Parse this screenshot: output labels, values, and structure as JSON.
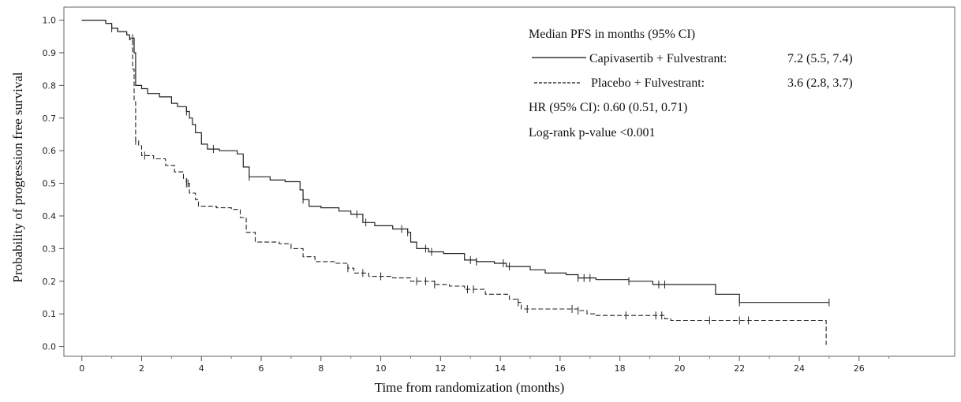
{
  "chart_data": {
    "type": "line",
    "xlabel": "Time from randomization (months)",
    "ylabel": "Probability of progression free survival",
    "xlim": [
      -0.6,
      29.2
    ],
    "ylim": [
      -0.03,
      1.04
    ],
    "xticks": [
      "0",
      "2",
      "4",
      "6",
      "8",
      "10",
      "12",
      "14",
      "16",
      "18",
      "20",
      "22",
      "24",
      "26"
    ],
    "yticks": [
      "0.0",
      "0.1",
      "0.2",
      "0.3",
      "0.4",
      "0.5",
      "0.6",
      "0.7",
      "0.8",
      "0.9",
      "1.0"
    ],
    "grid": false,
    "legend": {
      "title": "Median PFS in months (95% CI)",
      "entries": [
        {
          "line": "solid",
          "label": "Capivasertib + Fulvestrant:",
          "value": "7.2 (5.5, 7.4)"
        },
        {
          "line": "dashed",
          "label": "Placebo + Fulvestrant:",
          "value": "3.6 (2.8, 3.7)"
        }
      ],
      "notes": [
        "HR (95% CI): 0.60 (0.51, 0.71)",
        "Log-rank p-value <0.001"
      ]
    },
    "series": [
      {
        "line": "solid",
        "points": [
          [
            0,
            1.0
          ],
          [
            0.5,
            1.0
          ],
          [
            0.8,
            0.99
          ],
          [
            1.0,
            0.975
          ],
          [
            1.2,
            0.965
          ],
          [
            1.5,
            0.955
          ],
          [
            1.6,
            0.945
          ],
          [
            1.75,
            0.9
          ],
          [
            1.8,
            0.8
          ],
          [
            2.0,
            0.79
          ],
          [
            2.2,
            0.775
          ],
          [
            2.6,
            0.765
          ],
          [
            3.0,
            0.745
          ],
          [
            3.2,
            0.735
          ],
          [
            3.5,
            0.72
          ],
          [
            3.6,
            0.7
          ],
          [
            3.7,
            0.68
          ],
          [
            3.8,
            0.655
          ],
          [
            4.0,
            0.62
          ],
          [
            4.2,
            0.605
          ],
          [
            4.6,
            0.6
          ],
          [
            5.2,
            0.59
          ],
          [
            5.4,
            0.55
          ],
          [
            5.6,
            0.52
          ],
          [
            6.0,
            0.52
          ],
          [
            6.3,
            0.51
          ],
          [
            6.8,
            0.505
          ],
          [
            7.3,
            0.48
          ],
          [
            7.4,
            0.45
          ],
          [
            7.6,
            0.43
          ],
          [
            8.0,
            0.425
          ],
          [
            8.6,
            0.415
          ],
          [
            9.0,
            0.405
          ],
          [
            9.4,
            0.38
          ],
          [
            9.8,
            0.37
          ],
          [
            10.4,
            0.36
          ],
          [
            10.9,
            0.35
          ],
          [
            11.0,
            0.32
          ],
          [
            11.2,
            0.3
          ],
          [
            11.6,
            0.29
          ],
          [
            12.1,
            0.285
          ],
          [
            12.8,
            0.265
          ],
          [
            13.2,
            0.26
          ],
          [
            13.8,
            0.255
          ],
          [
            14.2,
            0.245
          ],
          [
            15.0,
            0.235
          ],
          [
            15.5,
            0.225
          ],
          [
            16.2,
            0.22
          ],
          [
            16.6,
            0.21
          ],
          [
            17.2,
            0.205
          ],
          [
            18.3,
            0.2
          ],
          [
            19.1,
            0.19
          ],
          [
            20.0,
            0.19
          ],
          [
            21.2,
            0.16
          ],
          [
            21.9,
            0.16
          ],
          [
            22.0,
            0.135
          ],
          [
            24.0,
            0.135
          ],
          [
            25.0,
            0.135
          ]
        ],
        "censor": [
          1.0,
          1.7,
          3.5,
          4.4,
          5.6,
          7.4,
          9.2,
          9.5,
          10.7,
          10.9,
          11.5,
          11.7,
          13.0,
          13.2,
          14.1,
          14.3,
          16.6,
          16.8,
          17.0,
          18.3,
          19.3,
          19.5,
          22.0,
          25.0
        ]
      },
      {
        "line": "dashed",
        "points": [
          [
            0,
            1.0
          ],
          [
            0.5,
            1.0
          ],
          [
            0.8,
            0.99
          ],
          [
            1.0,
            0.975
          ],
          [
            1.2,
            0.965
          ],
          [
            1.5,
            0.955
          ],
          [
            1.6,
            0.94
          ],
          [
            1.7,
            0.85
          ],
          [
            1.75,
            0.75
          ],
          [
            1.8,
            0.63
          ],
          [
            1.9,
            0.615
          ],
          [
            2.0,
            0.585
          ],
          [
            2.4,
            0.575
          ],
          [
            2.8,
            0.555
          ],
          [
            3.1,
            0.535
          ],
          [
            3.4,
            0.515
          ],
          [
            3.5,
            0.5
          ],
          [
            3.6,
            0.47
          ],
          [
            3.8,
            0.45
          ],
          [
            3.9,
            0.43
          ],
          [
            4.5,
            0.425
          ],
          [
            5.0,
            0.42
          ],
          [
            5.3,
            0.395
          ],
          [
            5.5,
            0.35
          ],
          [
            5.8,
            0.32
          ],
          [
            6.6,
            0.315
          ],
          [
            7.0,
            0.3
          ],
          [
            7.4,
            0.275
          ],
          [
            7.8,
            0.26
          ],
          [
            8.5,
            0.255
          ],
          [
            8.9,
            0.24
          ],
          [
            9.1,
            0.225
          ],
          [
            9.6,
            0.215
          ],
          [
            10.4,
            0.21
          ],
          [
            11.0,
            0.2
          ],
          [
            11.8,
            0.19
          ],
          [
            12.3,
            0.185
          ],
          [
            12.8,
            0.175
          ],
          [
            13.5,
            0.16
          ],
          [
            14.3,
            0.145
          ],
          [
            14.6,
            0.135
          ],
          [
            14.7,
            0.115
          ],
          [
            16.3,
            0.115
          ],
          [
            16.6,
            0.11
          ],
          [
            16.9,
            0.1
          ],
          [
            17.2,
            0.095
          ],
          [
            19.0,
            0.095
          ],
          [
            19.5,
            0.085
          ],
          [
            19.7,
            0.08
          ],
          [
            24.9,
            0.08
          ],
          [
            24.9,
            0.005
          ]
        ],
        "censor": [
          1.8,
          2.1,
          3.5,
          3.55,
          8.9,
          9.4,
          10.0,
          11.2,
          11.5,
          11.8,
          12.9,
          13.1,
          14.6,
          14.9,
          16.4,
          16.6,
          18.2,
          19.2,
          19.4,
          21.0,
          22.0,
          22.3
        ]
      }
    ]
  }
}
